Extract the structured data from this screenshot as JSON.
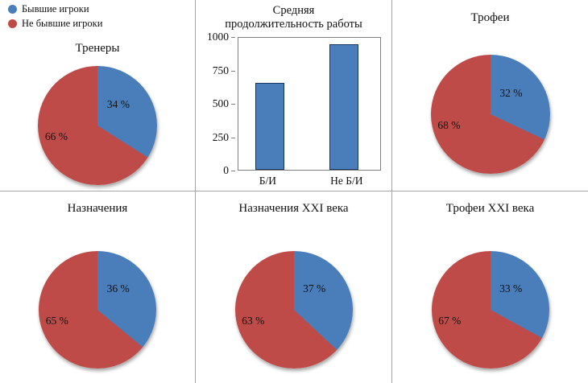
{
  "colors": {
    "blue": "#4a7ebb",
    "red": "#bf4b48",
    "bar_border": "#17375e"
  },
  "legend": {
    "items": [
      {
        "label": "Бывшие игроки"
      },
      {
        "label": "Не бывшие игроки"
      }
    ]
  },
  "chart_data": [
    {
      "type": "pie",
      "title": "Тренеры",
      "labels": [
        "Бывшие игроки",
        "Не бывшие игроки"
      ],
      "values": [
        34,
        66
      ],
      "blue_label": "34 %",
      "red_label": "66 %",
      "legend_position": "top-left of figure"
    },
    {
      "type": "bar",
      "title": "Средняя продолжительность работы",
      "title_lines": [
        "Средняя",
        "продолжительность работы"
      ],
      "categories": [
        "Б/И",
        "Не Б/И"
      ],
      "values": [
        660,
        950
      ],
      "ymax": 1000,
      "ylim": [
        0,
        1000
      ],
      "yticks": [
        0,
        250,
        500,
        750,
        1000
      ],
      "ytick_labels": [
        "1000",
        "750",
        "500",
        "250",
        "0"
      ],
      "grid": false
    },
    {
      "type": "pie",
      "title": "Трофеи",
      "labels": [
        "Бывшие игроки",
        "Не бывшие игроки"
      ],
      "values": [
        32,
        68
      ],
      "blue_label": "32 %",
      "red_label": "68 %"
    },
    {
      "type": "pie",
      "title": "Назначения",
      "labels": [
        "Бывшие игроки",
        "Не бывшие игроки"
      ],
      "values": [
        36,
        65
      ],
      "blue_label": "36 %",
      "red_label": "65 %"
    },
    {
      "type": "pie",
      "title": "Назначения XXI века",
      "labels": [
        "Бывшие игроки",
        "Не бывшие игроки"
      ],
      "values": [
        37,
        63
      ],
      "blue_label": "37 %",
      "red_label": "63 %"
    },
    {
      "type": "pie",
      "title": "Трофеи XXI века",
      "labels": [
        "Бывшие игроки",
        "Не бывшие игроки"
      ],
      "values": [
        33,
        67
      ],
      "blue_label": "33 %",
      "red_label": "67 %"
    }
  ]
}
